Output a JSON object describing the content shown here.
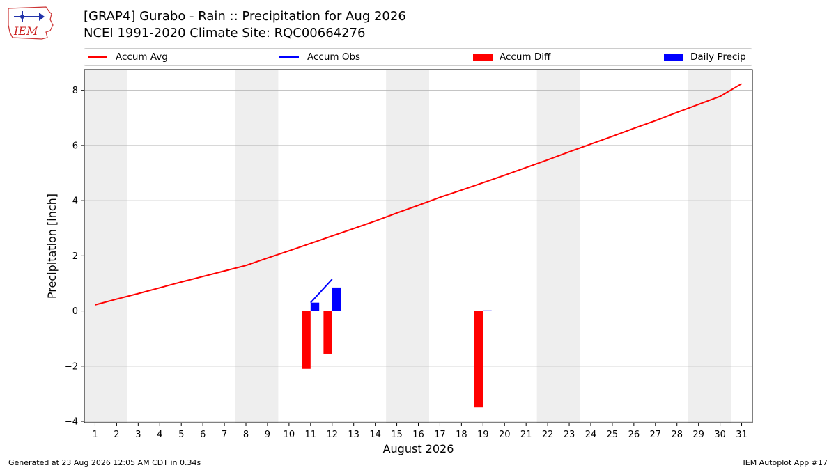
{
  "header": {
    "title_line1": "[GRAP4] Gurabo - Rain :: Precipitation for Aug 2026",
    "title_line2": "NCEI 1991-2020 Climate Site: RQC00664276",
    "logo_text": "IEM"
  },
  "footer": {
    "generated": "Generated at 23 Aug 2026 12:05 AM CDT in 0.34s",
    "app": "IEM Autoplot App #17"
  },
  "legend": {
    "accum_avg": "Accum Avg",
    "accum_obs": "Accum Obs",
    "accum_diff": "Accum Diff",
    "daily_precip": "Daily Precip"
  },
  "colors": {
    "accum_avg": "#ff0000",
    "accum_obs": "#0000ff",
    "accum_diff": "#ff0000",
    "daily_precip": "#0000ff",
    "weekend_band": "#eeeeee",
    "grid": "#b0b0b0"
  },
  "chart_data": {
    "type": "bar",
    "xlabel": "August 2026",
    "ylabel": "Precipitation [inch]",
    "xlim": [
      0.5,
      31.5
    ],
    "ylim": [
      -4.05,
      8.75
    ],
    "yticks": [
      -4,
      -2,
      0,
      2,
      4,
      6,
      8
    ],
    "xticks": [
      1,
      2,
      3,
      4,
      5,
      6,
      7,
      8,
      9,
      10,
      11,
      12,
      13,
      14,
      15,
      16,
      17,
      18,
      19,
      20,
      21,
      22,
      23,
      24,
      25,
      26,
      27,
      28,
      29,
      30,
      31
    ],
    "grid": true,
    "weekend_bands": [
      [
        1,
        2
      ],
      [
        8,
        9
      ],
      [
        15,
        16
      ],
      [
        22,
        23
      ],
      [
        29,
        30
      ]
    ],
    "accum_avg": {
      "name": "Accum Avg",
      "days": [
        1,
        2,
        3,
        4,
        5,
        6,
        7,
        8,
        9,
        10,
        11,
        12,
        13,
        14,
        15,
        16,
        17,
        18,
        19,
        20,
        21,
        22,
        23,
        24,
        25,
        26,
        27,
        28,
        29,
        30,
        31
      ],
      "values": [
        0.22,
        0.43,
        0.63,
        0.84,
        1.05,
        1.25,
        1.45,
        1.65,
        1.92,
        2.18,
        2.45,
        2.72,
        2.99,
        3.26,
        3.55,
        3.83,
        4.12,
        4.38,
        4.65,
        4.92,
        5.2,
        5.48,
        5.77,
        6.05,
        6.33,
        6.62,
        6.9,
        7.2,
        7.49,
        7.78,
        8.24
      ]
    },
    "accum_obs": {
      "name": "Accum Obs",
      "days": [
        11,
        12
      ],
      "values": [
        0.3,
        1.15
      ]
    },
    "accum_diff": {
      "name": "Accum Diff",
      "days": [
        11,
        12,
        19
      ],
      "values": [
        -2.1,
        -1.55,
        -3.5
      ]
    },
    "daily_precip": {
      "name": "Daily Precip",
      "days": [
        11,
        12,
        19
      ],
      "values": [
        0.3,
        0.85,
        0.02
      ]
    }
  }
}
